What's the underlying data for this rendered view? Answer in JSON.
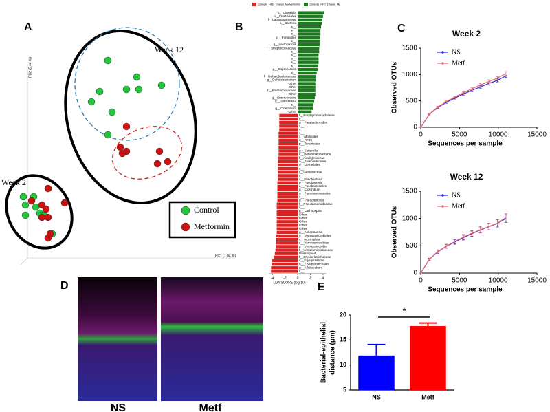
{
  "chart_data": [
    {
      "type": "scatter",
      "panel": "A",
      "xlabel": "PC1 (7.04 %)",
      "ylabel": "PC2 (5.44 %)",
      "annotations": [
        "Week 12",
        "Week 2"
      ],
      "xlim": [
        0,
        110
      ],
      "ylim": [
        0,
        125
      ],
      "series": [
        {
          "name": "Control",
          "color": "#22c83a",
          "x": [
            49,
            63,
            58,
            64,
            45,
            41,
            51,
            75,
            49,
            8,
            13,
            9,
            14,
            16,
            9,
            18,
            22
          ],
          "y": [
            99,
            91,
            85,
            85,
            84,
            79,
            74,
            87,
            63,
            33,
            33,
            29,
            28,
            25,
            24,
            24,
            15
          ]
        },
        {
          "name": "Metformin",
          "color": "#cc1111",
          "x": [
            58,
            55,
            58,
            56,
            74,
            73,
            78,
            20,
            12,
            17,
            28,
            19,
            17,
            20,
            21,
            20
          ],
          "y": [
            67,
            57,
            55,
            54,
            55,
            49,
            50,
            37,
            31,
            29,
            30,
            27,
            23,
            23,
            15,
            13
          ]
        }
      ]
    },
    {
      "type": "hbar",
      "panel": "B",
      "xlabel": "LDA SCORE (log 10)",
      "xlim": [
        -4.5,
        4.5
      ],
      "xticks": [
        -4,
        -2,
        0,
        2,
        4
      ],
      "categories": [
        "c__Clostridia",
        "o__Clostridiales",
        "f__Lachnospiraceae",
        "k__Bacteria",
        "s__",
        "s__",
        "s__",
        "p__Firmicutes",
        "s__",
        "g__Lactococcus",
        "f__Streptococcaceae",
        "s__",
        "s__",
        "s__",
        "s__",
        "s__",
        "g__Coprococcus",
        "s__",
        "f__Dehalobacteriaceae",
        "g__Dehalobacterium",
        "Other",
        "Other",
        "f__Enterococcaceae",
        "Other",
        "g__Enterococcus",
        "g__Trabulsiella",
        "s__",
        "g__Clostridium",
        "Other",
        "f__Porphyromonadaceae",
        "s__",
        "g__Parabacteroides",
        "s__",
        "s__",
        "s__",
        "c__Mollicutes",
        "o__RF39",
        "p__Tenericutes",
        "s__",
        "g__Sutterella",
        "c__Betaproteobacteria",
        "f__Alcaligenaceae",
        "o__Burkholderiales",
        "o__Gemellales",
        "s__",
        "f__Gemellaceae",
        "s__",
        "c__Fusobacteria",
        "p__Fusobacteria",
        "o__Fusobacteriales",
        "g__Clostridium",
        "o__Pseudomonadales",
        "s__",
        "g__Pseudomonas",
        "f__Pseudomonadaceae",
        "s__",
        "g__Lachnospira",
        "Other",
        "Other",
        "Other",
        "Other",
        "Other",
        "g__Akkermansia",
        "o__Verrucomicrobiales",
        "s__muciniphila",
        "c__Verrucomicrobiae",
        "p__Verrucomicrobia",
        "f__Verrucomicrobiaceae",
        "Unassigned",
        "f__Erysipelotrichaceae",
        "c__Erysipelotrichi",
        "o__Erysipelotrichales",
        "g__Allobaculum",
        "s__"
      ],
      "series": [
        {
          "name": "12weeks_HFD_10week_MetMetformin",
          "color": "#dd2222",
          "values": [
            null,
            null,
            null,
            null,
            null,
            null,
            null,
            null,
            null,
            null,
            null,
            null,
            null,
            null,
            null,
            null,
            null,
            null,
            null,
            null,
            null,
            null,
            null,
            null,
            null,
            null,
            null,
            null,
            null,
            -2.9,
            -2.9,
            -2.9,
            -2.9,
            -2.9,
            -3.0,
            -3.0,
            -3.0,
            -3.0,
            -3.0,
            -3.0,
            -3.0,
            -3.1,
            -3.1,
            -3.1,
            -3.1,
            -3.1,
            -3.1,
            -3.1,
            -3.2,
            -3.2,
            -3.2,
            -3.2,
            -3.2,
            -3.2,
            -3.3,
            -3.3,
            -3.3,
            -3.3,
            -3.3,
            -3.3,
            -3.3,
            -3.3,
            -3.3,
            -3.4,
            -3.4,
            -3.4,
            -3.4,
            -3.5,
            -3.6,
            -3.8,
            -4.0,
            -4.1,
            -4.2,
            -4.2
          ]
        },
        {
          "name": "12weeks_HFD_10week_Ne",
          "color": "#1e7a1e",
          "values": [
            4.2,
            4.0,
            3.9,
            3.8,
            3.7,
            3.6,
            3.6,
            3.5,
            3.5,
            3.5,
            3.4,
            3.4,
            3.3,
            3.3,
            3.3,
            3.2,
            3.2,
            3.0,
            2.9,
            2.9,
            2.8,
            2.8,
            2.8,
            2.8,
            2.7,
            2.6,
            2.5,
            2.4,
            2.2,
            null,
            null,
            null,
            null,
            null,
            null,
            null,
            null,
            null,
            null,
            null,
            null,
            null,
            null,
            null,
            null,
            null,
            null,
            null,
            null,
            null,
            null,
            null,
            null,
            null,
            null,
            null,
            null,
            null,
            null,
            null,
            null,
            null,
            null,
            null,
            null,
            null,
            null,
            null,
            null,
            null,
            null,
            null,
            null,
            null
          ]
        }
      ]
    },
    {
      "type": "line",
      "panel": "C",
      "title": "Week 2",
      "xlabel": "Sequences per sample",
      "ylabel": "Observed OTUs",
      "xlim": [
        0,
        15000
      ],
      "xticks": [
        0,
        5000,
        10000,
        15000
      ],
      "ylim": [
        0,
        1500
      ],
      "yticks": [
        0,
        500,
        1000,
        1500
      ],
      "x": [
        10,
        1100,
        2200,
        3300,
        4400,
        5500,
        6600,
        7700,
        8800,
        9900,
        11000
      ],
      "series": [
        {
          "name": "NS",
          "color": "#2a2ad8",
          "values": [
            0,
            245,
            375,
            470,
            555,
            630,
            700,
            765,
            830,
            890,
            975
          ],
          "errors": [
            0,
            10,
            15,
            15,
            20,
            20,
            25,
            25,
            30,
            30,
            35
          ]
        },
        {
          "name": "Metf",
          "color": "#f06a6a",
          "values": [
            0,
            250,
            385,
            485,
            575,
            655,
            730,
            800,
            870,
            930,
            1020
          ],
          "errors": [
            0,
            10,
            15,
            15,
            20,
            20,
            25,
            25,
            30,
            30,
            35
          ]
        }
      ]
    },
    {
      "type": "line",
      "title": "Week 12",
      "xlabel": "Sequences per sample",
      "ylabel": "Observed OTUs",
      "xlim": [
        0,
        15000
      ],
      "xticks": [
        0,
        5000,
        10000,
        15000
      ],
      "ylim": [
        0,
        1500
      ],
      "yticks": [
        0,
        500,
        1000,
        1500
      ],
      "x": [
        10,
        1100,
        2200,
        3300,
        4400,
        5500,
        6600,
        7700,
        8800,
        9900,
        11000
      ],
      "series": [
        {
          "name": "NS",
          "color": "#2a2ad8",
          "values": [
            0,
            250,
            390,
            490,
            570,
            650,
            720,
            790,
            850,
            910,
            1000
          ],
          "errors": [
            0,
            20,
            30,
            35,
            40,
            45,
            50,
            55,
            60,
            65,
            70
          ]
        },
        {
          "name": "Metf",
          "color": "#f06a6a",
          "values": [
            0,
            255,
            395,
            495,
            580,
            660,
            730,
            795,
            855,
            915,
            1020
          ],
          "errors": [
            0,
            20,
            30,
            35,
            40,
            45,
            50,
            55,
            60,
            65,
            70
          ]
        }
      ]
    },
    {
      "type": "bar",
      "panel": "E",
      "ylabel": [
        "Bacterial-epithelial",
        "distance (µm)"
      ],
      "annotation": "*",
      "categories": [
        "NS",
        "Metf"
      ],
      "values": [
        11.9,
        17.8
      ],
      "errors": [
        2.2,
        0.6
      ],
      "colors": [
        "#0000ff",
        "#ff0000"
      ],
      "ylim": [
        5,
        20
      ],
      "yticks": [
        5,
        10,
        15,
        20
      ]
    }
  ],
  "panel_d": {
    "letter": "D",
    "images": [
      "NS",
      "Metf"
    ]
  }
}
